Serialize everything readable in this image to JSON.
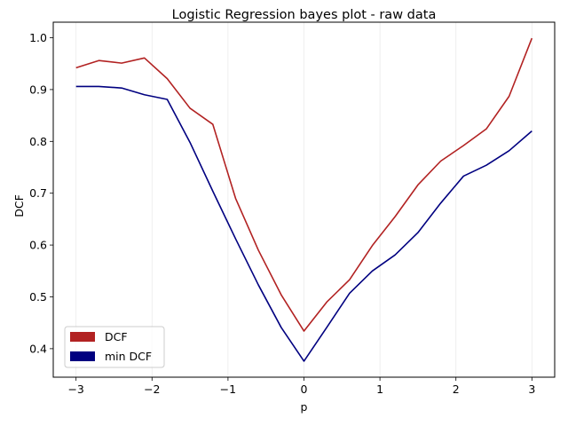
{
  "chart_data": {
    "type": "line",
    "title": "Logistic Regression bayes plot - raw data",
    "xlabel": "p",
    "ylabel": "DCF",
    "xlim": [
      -3.3,
      3.3
    ],
    "ylim": [
      0.345,
      1.03
    ],
    "xticks": [
      -3,
      -2,
      -1,
      0,
      1,
      2,
      3
    ],
    "xtick_labels": [
      "−3",
      "−2",
      "−1",
      "0",
      "1",
      "2",
      "3"
    ],
    "yticks": [
      0.4,
      0.5,
      0.6,
      0.7,
      0.8,
      0.9,
      1.0
    ],
    "ytick_labels": [
      "0.4",
      "0.5",
      "0.6",
      "0.7",
      "0.8",
      "0.9",
      "1.0"
    ],
    "grid": "x-axis only, faint",
    "legend_position": "lower-left",
    "x": [
      -3.0,
      -2.7,
      -2.4,
      -2.1,
      -1.8,
      -1.5,
      -1.2,
      -0.9,
      -0.6,
      -0.3,
      0.0,
      0.3,
      0.6,
      0.9,
      1.2,
      1.5,
      1.8,
      2.1,
      2.4,
      2.7,
      3.0
    ],
    "series": [
      {
        "name": "DCF",
        "color": "#b22222",
        "values": [
          0.942,
          0.956,
          0.951,
          0.961,
          0.921,
          0.864,
          0.833,
          0.69,
          0.59,
          0.504,
          0.434,
          0.49,
          0.533,
          0.599,
          0.655,
          0.716,
          0.762,
          0.792,
          0.824,
          0.887,
          0.999
        ]
      },
      {
        "name": "min DCF",
        "color": "#000080",
        "values": [
          0.906,
          0.906,
          0.903,
          0.89,
          0.881,
          0.798,
          0.704,
          0.612,
          0.523,
          0.441,
          0.376,
          0.441,
          0.507,
          0.55,
          0.581,
          0.624,
          0.681,
          0.733,
          0.754,
          0.782,
          0.82
        ]
      }
    ]
  }
}
